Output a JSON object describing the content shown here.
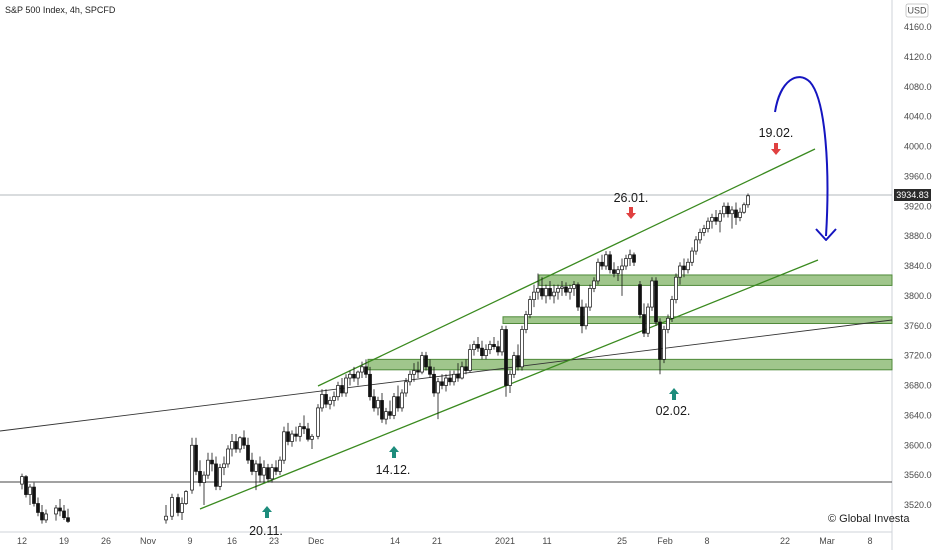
{
  "chart_data": {
    "type": "candlestick",
    "title": "S&P 500 Index, 4h, SPCFD",
    "currency": "USD",
    "ylim": [
      3496,
      4180
    ],
    "y_ticks": [
      "4160.00",
      "4120.00",
      "4080.00",
      "4040.00",
      "4000.00",
      "3960.00",
      "3920.00",
      "3880.00",
      "3840.00",
      "3800.00",
      "3760.00",
      "3720.00",
      "3680.00",
      "3640.00",
      "3600.00",
      "3560.00",
      "3520.00"
    ],
    "x_ticks": [
      "12",
      "19",
      "26",
      "Nov",
      "9",
      "16",
      "23",
      "Dec",
      "14",
      "21",
      "2021",
      "11",
      "25",
      "Feb",
      "8",
      "22",
      "Mar",
      "8"
    ],
    "last_price": "3934.83",
    "watermark": "© Global Investa",
    "annotations": [
      "20.11.",
      "14.12.",
      "02.02.",
      "26.01.",
      "19.02."
    ],
    "zones": [
      {
        "from": 3814,
        "to": 3828
      },
      {
        "from": 3763,
        "to": 3772
      },
      {
        "from": 3701,
        "to": 3715
      }
    ],
    "colors": {
      "zone": "#8fbc78",
      "zone_border": "#4f8a3a",
      "channel": "#3a8a1f",
      "arrow_up": "#1d8c7c",
      "arrow_down": "#e04040",
      "projection": "#1515c0"
    }
  }
}
